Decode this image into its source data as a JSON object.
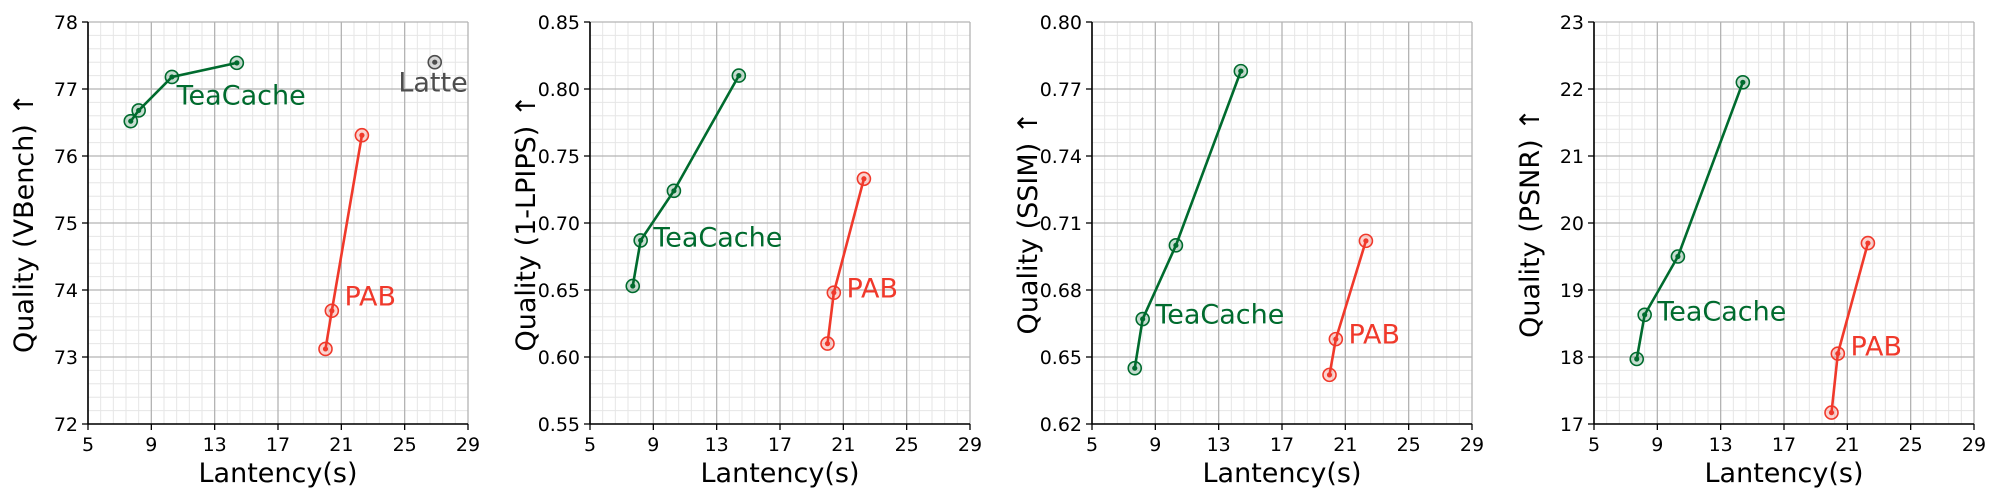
{
  "chart_data": [
    {
      "type": "line",
      "xlabel": "Lantency(s)",
      "ylabel": "Quality (VBench) ↑",
      "xlim": [
        5,
        29
      ],
      "xticks": [
        5,
        9,
        13,
        17,
        21,
        25,
        29
      ],
      "ylim": [
        72,
        78
      ],
      "yticks": [
        72,
        73,
        74,
        75,
        76,
        77,
        78
      ],
      "ytick_labels": [
        "72",
        "73",
        "74",
        "75",
        "76",
        "77",
        "78"
      ],
      "grid": true,
      "series": [
        {
          "name": "TeaCache",
          "color": "#006b2e",
          "x": [
            7.7,
            8.2,
            10.3,
            14.4
          ],
          "y": [
            76.52,
            76.68,
            77.18,
            77.39
          ]
        },
        {
          "name": "PAB",
          "color": "#f0392b",
          "x": [
            20.0,
            20.4,
            22.3
          ],
          "y": [
            73.12,
            73.69,
            76.31
          ]
        },
        {
          "name": "Latte",
          "color": "#4d4d4d",
          "x": [
            26.9
          ],
          "y": [
            77.4
          ]
        }
      ],
      "annotations": [
        {
          "text": "TeaCache",
          "series": "TeaCache",
          "x": 10.6,
          "y": 76.9
        },
        {
          "text": "PAB",
          "series": "PAB",
          "x": 21.2,
          "y": 73.9
        },
        {
          "text": "Latte",
          "series": "Latte",
          "x": 24.6,
          "y": 77.1
        }
      ]
    },
    {
      "type": "line",
      "xlabel": "Lantency(s)",
      "ylabel": "Quality (1-LPIPS) ↑",
      "xlim": [
        5,
        29
      ],
      "xticks": [
        5,
        9,
        13,
        17,
        21,
        25,
        29
      ],
      "ylim": [
        0.55,
        0.85
      ],
      "yticks": [
        0.55,
        0.6,
        0.65,
        0.7,
        0.75,
        0.8,
        0.85
      ],
      "ytick_labels": [
        "0.55",
        "0.60",
        "0.65",
        "0.70",
        "0.75",
        "0.80",
        "0.85"
      ],
      "grid": true,
      "series": [
        {
          "name": "TeaCache",
          "color": "#006b2e",
          "x": [
            7.7,
            8.2,
            10.3,
            14.4
          ],
          "y": [
            0.653,
            0.687,
            0.724,
            0.81
          ]
        },
        {
          "name": "PAB",
          "color": "#f0392b",
          "x": [
            20.0,
            20.4,
            22.3
          ],
          "y": [
            0.61,
            0.648,
            0.733
          ]
        }
      ],
      "annotations": [
        {
          "text": "TeaCache",
          "series": "TeaCache",
          "x": 9.0,
          "y": 0.689
        },
        {
          "text": "PAB",
          "series": "PAB",
          "x": 21.2,
          "y": 0.651
        }
      ]
    },
    {
      "type": "line",
      "xlabel": "Lantency(s)",
      "ylabel": "Quality (SSIM) ↑",
      "xlim": [
        5,
        29
      ],
      "xticks": [
        5,
        9,
        13,
        17,
        21,
        25,
        29
      ],
      "ylim": [
        0.62,
        0.8
      ],
      "yticks": [
        0.62,
        0.65,
        0.68,
        0.71,
        0.74,
        0.77,
        0.8
      ],
      "ytick_labels": [
        "0.62",
        "0.65",
        "0.68",
        "0.71",
        "0.74",
        "0.77",
        "0.80"
      ],
      "grid": true,
      "series": [
        {
          "name": "TeaCache",
          "color": "#006b2e",
          "x": [
            7.7,
            8.2,
            10.3,
            14.4
          ],
          "y": [
            0.645,
            0.667,
            0.7,
            0.778
          ]
        },
        {
          "name": "PAB",
          "color": "#f0392b",
          "x": [
            20.0,
            20.4,
            22.3
          ],
          "y": [
            0.642,
            0.658,
            0.702
          ]
        }
      ],
      "annotations": [
        {
          "text": "TeaCache",
          "series": "TeaCache",
          "x": 9.0,
          "y": 0.669
        },
        {
          "text": "PAB",
          "series": "PAB",
          "x": 21.2,
          "y": 0.66
        }
      ]
    },
    {
      "type": "line",
      "xlabel": "Lantency(s)",
      "ylabel": "Quality (PSNR) ↑",
      "xlim": [
        5,
        29
      ],
      "xticks": [
        5,
        9,
        13,
        17,
        21,
        25,
        29
      ],
      "ylim": [
        17,
        23
      ],
      "yticks": [
        17,
        18,
        19,
        20,
        21,
        22,
        23
      ],
      "ytick_labels": [
        "17",
        "18",
        "19",
        "20",
        "21",
        "22",
        "23"
      ],
      "grid": true,
      "series": [
        {
          "name": "TeaCache",
          "color": "#006b2e",
          "x": [
            7.7,
            8.2,
            10.3,
            14.4
          ],
          "y": [
            17.97,
            18.63,
            19.5,
            22.1
          ]
        },
        {
          "name": "PAB",
          "color": "#f0392b",
          "x": [
            20.0,
            20.4,
            22.3
          ],
          "y": [
            17.17,
            18.05,
            19.7
          ]
        }
      ],
      "annotations": [
        {
          "text": "TeaCache",
          "series": "TeaCache",
          "x": 9.0,
          "y": 18.68
        },
        {
          "text": "PAB",
          "series": "PAB",
          "x": 21.2,
          "y": 18.16
        }
      ]
    }
  ]
}
